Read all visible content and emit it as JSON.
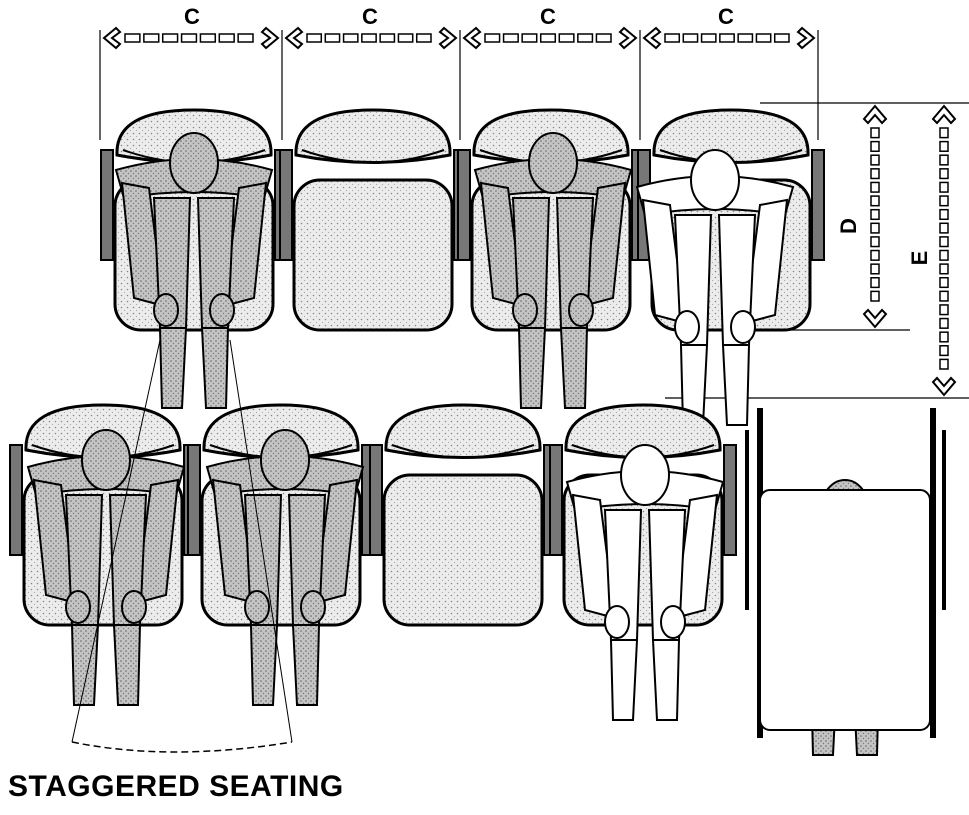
{
  "title": "STAGGERED SEATING",
  "dimensions": {
    "width_label": "C",
    "depth_label": "D",
    "row_spacing_label": "E"
  },
  "colors": {
    "line": "#000000",
    "shade": "#bdbdbd",
    "background": "#ffffff"
  }
}
